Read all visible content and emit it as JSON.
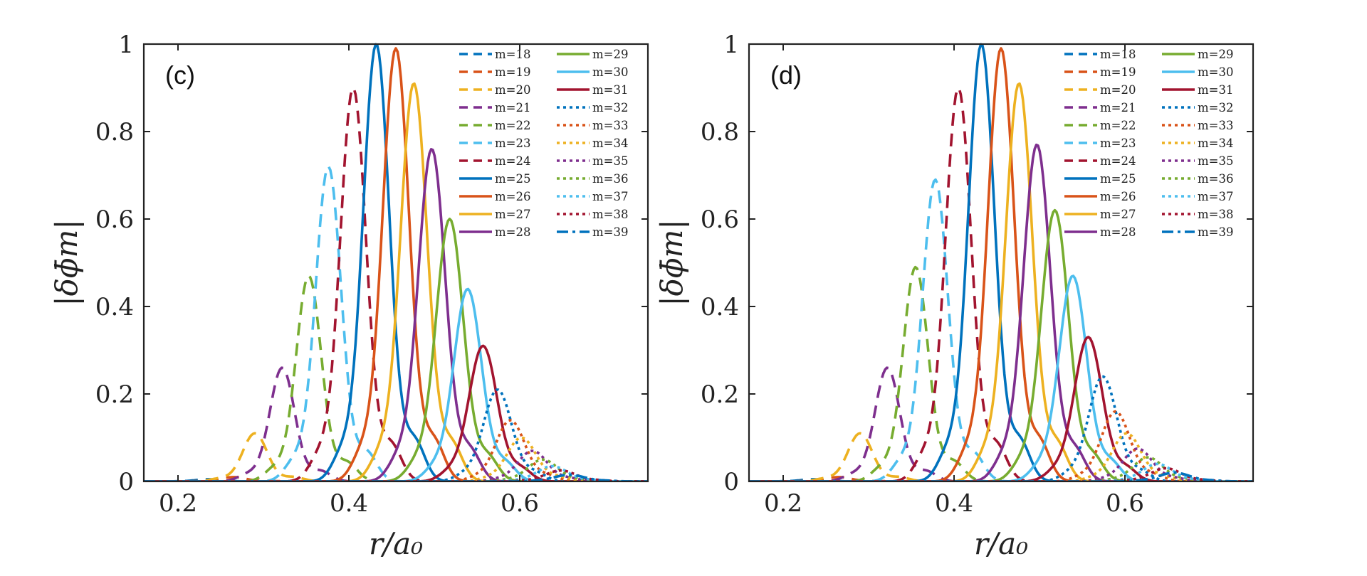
{
  "chart_data": [
    {
      "type": "line",
      "panel_label": "(c)",
      "xlabel": "r/a₀",
      "ylabel": "|δϕ̄m|",
      "xlim": [
        0.16,
        0.75
      ],
      "ylim": [
        0,
        1
      ],
      "x_ticks": [
        0.2,
        0.4,
        0.6
      ],
      "y_ticks": [
        0,
        0.2,
        0.4,
        0.6,
        0.8,
        1
      ],
      "x_tick_labels": [
        "0.2",
        "0.4",
        "0.6"
      ],
      "y_tick_labels": [
        "0",
        "0.2",
        "0.4",
        "0.6",
        "0.8",
        "1"
      ],
      "grid": false,
      "legend_position": "top-right",
      "series_peaks": [
        {
          "name": "m=18",
          "peak_x": 0.235,
          "peak_y": 0.005
        },
        {
          "name": "m=19",
          "peak_x": 0.265,
          "peak_y": 0.01
        },
        {
          "name": "m=20",
          "peak_x": 0.29,
          "peak_y": 0.11
        },
        {
          "name": "m=21",
          "peak_x": 0.322,
          "peak_y": 0.26
        },
        {
          "name": "m=22",
          "peak_x": 0.353,
          "peak_y": 0.47
        },
        {
          "name": "m=23",
          "peak_x": 0.376,
          "peak_y": 0.72
        },
        {
          "name": "m=24",
          "peak_x": 0.405,
          "peak_y": 0.9
        },
        {
          "name": "m=25",
          "peak_x": 0.432,
          "peak_y": 1.0
        },
        {
          "name": "m=26",
          "peak_x": 0.455,
          "peak_y": 0.99
        },
        {
          "name": "m=27",
          "peak_x": 0.476,
          "peak_y": 0.91
        },
        {
          "name": "m=28",
          "peak_x": 0.497,
          "peak_y": 0.76
        },
        {
          "name": "m=29",
          "peak_x": 0.518,
          "peak_y": 0.6
        },
        {
          "name": "m=30",
          "peak_x": 0.539,
          "peak_y": 0.44
        },
        {
          "name": "m=31",
          "peak_x": 0.557,
          "peak_y": 0.31
        },
        {
          "name": "m=32",
          "peak_x": 0.574,
          "peak_y": 0.21
        },
        {
          "name": "m=33",
          "peak_x": 0.589,
          "peak_y": 0.14
        },
        {
          "name": "m=34",
          "peak_x": 0.602,
          "peak_y": 0.1
        },
        {
          "name": "m=35",
          "peak_x": 0.615,
          "peak_y": 0.07
        },
        {
          "name": "m=36",
          "peak_x": 0.627,
          "peak_y": 0.05
        },
        {
          "name": "m=37",
          "peak_x": 0.638,
          "peak_y": 0.035
        },
        {
          "name": "m=38",
          "peak_x": 0.648,
          "peak_y": 0.025
        },
        {
          "name": "m=39",
          "peak_x": 0.658,
          "peak_y": 0.015
        }
      ]
    },
    {
      "type": "line",
      "panel_label": "(d)",
      "xlabel": "r/a₀",
      "ylabel": "|δϕ̄m|",
      "xlim": [
        0.16,
        0.75
      ],
      "ylim": [
        0,
        1
      ],
      "x_ticks": [
        0.2,
        0.4,
        0.6
      ],
      "y_ticks": [
        0,
        0.2,
        0.4,
        0.6,
        0.8,
        1
      ],
      "x_tick_labels": [
        "0.2",
        "0.4",
        "0.6"
      ],
      "y_tick_labels": [
        "0",
        "0.2",
        "0.4",
        "0.6",
        "0.8",
        "1"
      ],
      "grid": false,
      "legend_position": "top-right",
      "series_peaks": [
        {
          "name": "m=18",
          "peak_x": 0.235,
          "peak_y": 0.005
        },
        {
          "name": "m=19",
          "peak_x": 0.265,
          "peak_y": 0.01
        },
        {
          "name": "m=20",
          "peak_x": 0.29,
          "peak_y": 0.11
        },
        {
          "name": "m=21",
          "peak_x": 0.322,
          "peak_y": 0.26
        },
        {
          "name": "m=22",
          "peak_x": 0.355,
          "peak_y": 0.49
        },
        {
          "name": "m=23",
          "peak_x": 0.378,
          "peak_y": 0.69
        },
        {
          "name": "m=24",
          "peak_x": 0.405,
          "peak_y": 0.9
        },
        {
          "name": "m=25",
          "peak_x": 0.432,
          "peak_y": 1.0
        },
        {
          "name": "m=26",
          "peak_x": 0.455,
          "peak_y": 0.99
        },
        {
          "name": "m=27",
          "peak_x": 0.476,
          "peak_y": 0.91
        },
        {
          "name": "m=28",
          "peak_x": 0.497,
          "peak_y": 0.77
        },
        {
          "name": "m=29",
          "peak_x": 0.518,
          "peak_y": 0.62
        },
        {
          "name": "m=30",
          "peak_x": 0.539,
          "peak_y": 0.47
        },
        {
          "name": "m=31",
          "peak_x": 0.557,
          "peak_y": 0.33
        },
        {
          "name": "m=32",
          "peak_x": 0.574,
          "peak_y": 0.24
        },
        {
          "name": "m=33",
          "peak_x": 0.589,
          "peak_y": 0.16
        },
        {
          "name": "m=34",
          "peak_x": 0.602,
          "peak_y": 0.11
        },
        {
          "name": "m=35",
          "peak_x": 0.615,
          "peak_y": 0.075
        },
        {
          "name": "m=36",
          "peak_x": 0.627,
          "peak_y": 0.055
        },
        {
          "name": "m=37",
          "peak_x": 0.638,
          "peak_y": 0.04
        },
        {
          "name": "m=38",
          "peak_x": 0.648,
          "peak_y": 0.03
        },
        {
          "name": "m=39",
          "peak_x": 0.658,
          "peak_y": 0.02
        }
      ]
    }
  ],
  "colors": {
    "blue": "#0072BD",
    "orange": "#D95319",
    "yellow": "#EDB120",
    "purple": "#7E2F8E",
    "green": "#77AC30",
    "cyan": "#4DBEEE",
    "red": "#A2142F"
  }
}
